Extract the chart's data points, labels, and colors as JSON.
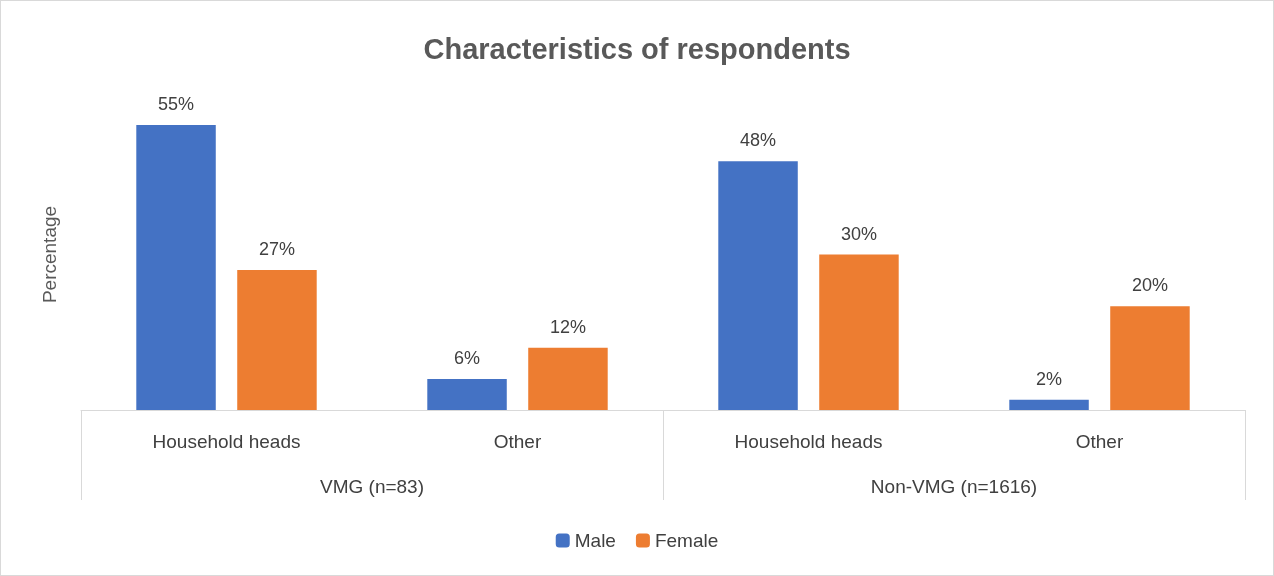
{
  "chart_data": {
    "type": "bar",
    "title": "Characteristics of respondents",
    "ylabel": "Percentage",
    "categories": [
      "Household heads",
      "Other",
      "Household heads",
      "Other"
    ],
    "series": [
      {
        "name": "Male",
        "color": "#4472c4",
        "values": [
          55,
          6,
          48,
          2
        ],
        "value_labels": [
          "55%",
          "6%",
          "48%",
          "2%"
        ]
      },
      {
        "name": "Female",
        "color": "#ed7d31",
        "values": [
          27,
          12,
          30,
          20
        ],
        "value_labels": [
          "27%",
          "12%",
          "30%",
          "20%"
        ]
      }
    ],
    "annotations": [
      "VMG (n=83)",
      "Non-VMG (n=1616)"
    ],
    "legend": "bottom",
    "grid": false
  }
}
